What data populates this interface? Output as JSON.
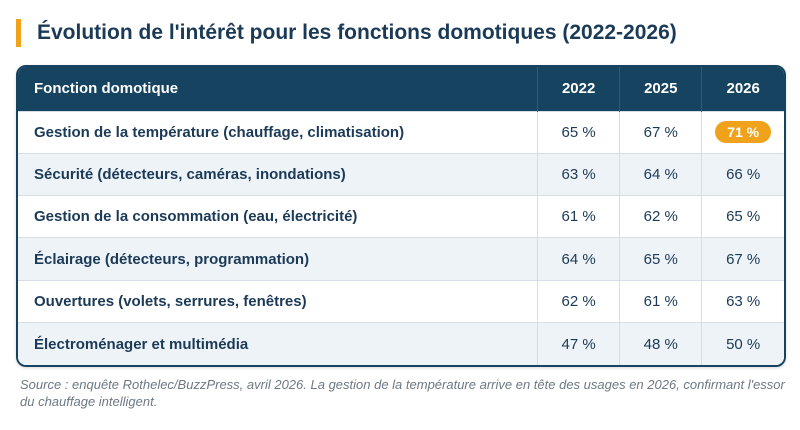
{
  "title": "Évolution de l'intérêt pour les fonctions domotiques (2022-2026)",
  "colors": {
    "header_bg": "#16435f",
    "accent": "#f0a21b",
    "text": "#1b3a57",
    "stripe": "#eef3f8"
  },
  "chart_data": {
    "type": "table",
    "columns": [
      "Fonction domotique",
      "2022",
      "2025",
      "2026"
    ],
    "unit": "%",
    "rows": [
      {
        "label": "Gestion de la température (chauffage, climatisation)",
        "values": [
          "65 %",
          "67 %",
          "71 %"
        ],
        "highlight": 2
      },
      {
        "label": "Sécurité (détecteurs, caméras, inondations)",
        "values": [
          "63 %",
          "64 %",
          "66 %"
        ]
      },
      {
        "label": "Gestion de la consommation (eau, électricité)",
        "values": [
          "61 %",
          "62 %",
          "65 %"
        ]
      },
      {
        "label": "Éclairage (détecteurs, programmation)",
        "values": [
          "64 %",
          "65 %",
          "67 %"
        ]
      },
      {
        "label": "Ouvertures (volets, serrures, fenêtres)",
        "values": [
          "62 %",
          "61 %",
          "63 %"
        ]
      },
      {
        "label": "Électroménager et multimédia",
        "values": [
          "47 %",
          "48 %",
          "50 %"
        ]
      }
    ]
  },
  "source": "Source : enquête Rothelec/BuzzPress, avril 2026. La gestion de la température arrive en tête des usages en 2026, confirmant l'essor du chauffage intelligent."
}
